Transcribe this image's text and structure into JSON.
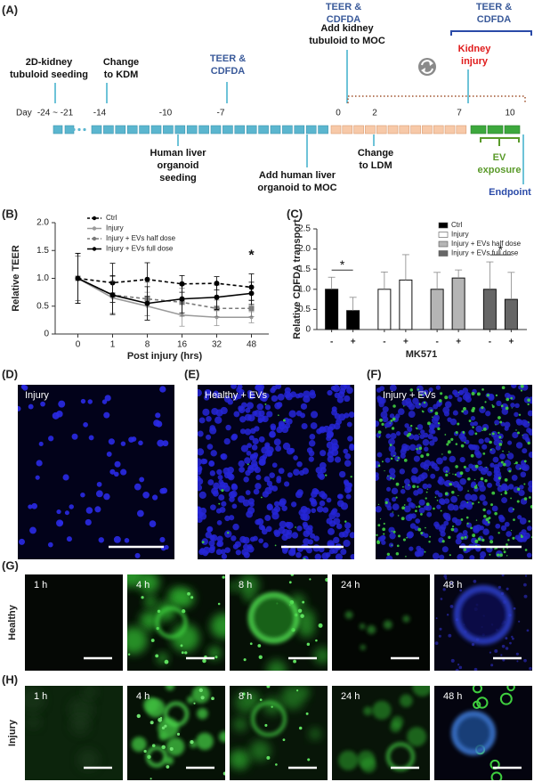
{
  "panel_labels": [
    "(A)",
    "(B)",
    "(C)",
    "(D)",
    "(E)",
    "(F)",
    "(G)",
    "(H)"
  ],
  "timeline": {
    "day_label": "Day",
    "ticks": [
      "-24 ~ -21",
      "-14",
      "-10",
      "-7",
      "0",
      "2",
      "7",
      "10"
    ],
    "annotations": [
      {
        "lines": [
          "2D-kidney",
          "tubuloid seeding"
        ]
      },
      {
        "lines": [
          "Change",
          "to KDM"
        ]
      },
      {
        "lines": [
          "TEER &",
          "CDFDA"
        ]
      },
      {
        "lines": [
          "TEER &",
          "CDFDA"
        ]
      },
      {
        "lines": [
          "Add kidney",
          "tubuloid to MOC"
        ]
      },
      {
        "lines": [
          "Kidney",
          "injury"
        ]
      },
      {
        "lines": [
          "TEER &",
          "CDFDA"
        ]
      },
      {
        "lines": [
          "Human liver",
          "organoid",
          "seeding"
        ]
      },
      {
        "lines": [
          "Add human liver",
          "organoid to MOC"
        ]
      },
      {
        "lines": [
          "Change",
          "to LDM"
        ]
      },
      {
        "lines": [
          "EV",
          "exposure"
        ]
      },
      {
        "lines": [
          "Endpoint"
        ]
      }
    ]
  },
  "chart_data": [
    {
      "type": "line",
      "ylabel": "Relative TEER",
      "xlabel": "Post injury (hrs)",
      "categories": [
        "0",
        "1",
        "8",
        "16",
        "32",
        "48"
      ],
      "ylim": [
        0,
        2
      ],
      "yticks": [
        0,
        0.5,
        {
          "value": 1,
          "label": "1.0"
        },
        1.5,
        {
          "value": 2,
          "label": "2.0"
        }
      ],
      "legend": "top-left",
      "annotation": "*",
      "series": [
        {
          "name": "Ctrl",
          "color": "#000000",
          "linestyle": "dashed",
          "marker": "circle",
          "values": [
            1.0,
            0.92,
            0.98,
            0.9,
            0.91,
            0.84
          ],
          "errors": [
            0.45,
            0.35,
            0.3,
            0.15,
            0.12,
            0.24
          ]
        },
        {
          "name": "Injury",
          "color": "#9a9a9a",
          "linestyle": "solid",
          "marker": "dot",
          "values": [
            1.0,
            0.65,
            0.5,
            0.34,
            0.3,
            0.3
          ],
          "errors": [
            0.4,
            0.3,
            0.25,
            0.2,
            0.15,
            0.1
          ]
        },
        {
          "name": "Injury + EVs half dose",
          "color": "#7a7a7a",
          "linestyle": "dashed",
          "marker": "square",
          "values": [
            1.0,
            0.7,
            0.63,
            0.57,
            0.46,
            0.46
          ],
          "errors": [
            0.4,
            0.33,
            0.3,
            0.25,
            0.15,
            0.15
          ]
        },
        {
          "name": "Injury + EVs full dose",
          "color": "#000000",
          "linestyle": "solid",
          "marker": "circle",
          "values": [
            1.0,
            0.7,
            0.55,
            0.63,
            0.66,
            0.73
          ],
          "errors": [
            0.45,
            0.35,
            0.3,
            0.25,
            0.22,
            0.2
          ]
        }
      ]
    },
    {
      "type": "bar",
      "ylabel": "Relative CDFDA transport",
      "xlabel": "MK571",
      "categories": [
        "-",
        "+"
      ],
      "ylim": [
        0,
        2.5
      ],
      "yticks": [
        0,
        0.5,
        {
          "value": 1,
          "label": "1.0"
        },
        1.5,
        {
          "value": 2,
          "label": "2.0"
        },
        2.5
      ],
      "legend": "top-right",
      "series": [
        {
          "name": "Ctrl",
          "color": "#000000",
          "values": [
            1.0,
            0.47
          ],
          "errors": [
            0.3,
            0.33
          ],
          "significance": "*"
        },
        {
          "name": "Injury",
          "color": "#ffffff",
          "values": [
            1.0,
            1.23
          ],
          "errors": [
            0.43,
            0.63
          ]
        },
        {
          "name": "Injury + EVs half dose",
          "color": "#b5b5b5",
          "values": [
            1.0,
            1.28
          ],
          "errors": [
            0.42,
            0.2
          ]
        },
        {
          "name": "Injury + EVs full dose",
          "color": "#666666",
          "values": [
            1.0,
            0.75
          ],
          "errors": [
            0.68,
            0.67
          ],
          "significance": "*"
        }
      ]
    }
  ],
  "micrographs": {
    "single": [
      "Injury",
      "Healthy + EVs",
      "Injury + EVs"
    ],
    "timepoints": [
      "1 h",
      "4 h",
      "8 h",
      "24 h",
      "48 h"
    ],
    "rows": [
      "Healthy",
      "Injury"
    ]
  }
}
